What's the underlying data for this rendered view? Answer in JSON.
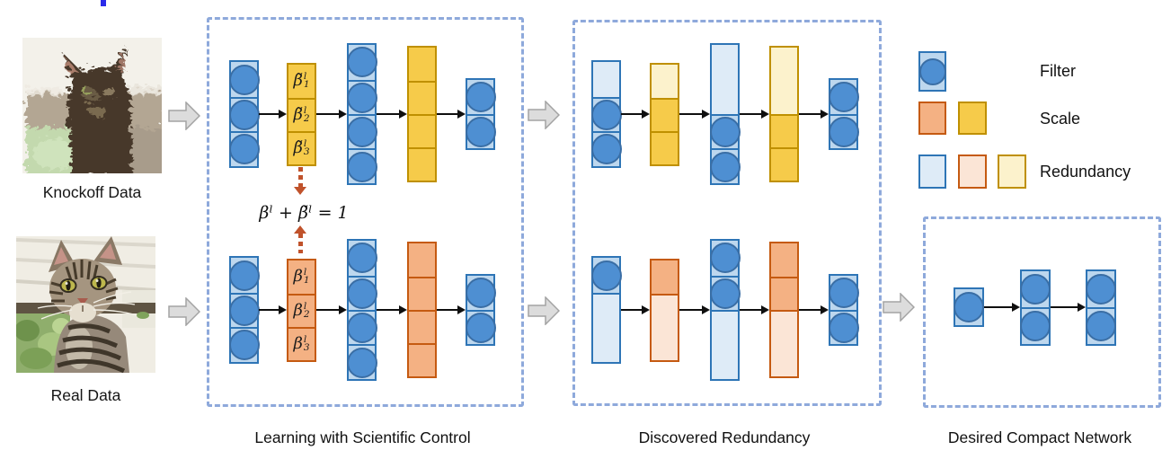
{
  "inputs": {
    "knockoff_label": "Knockoff Data",
    "real_label": "Real Data"
  },
  "panels": {
    "learning": {
      "caption": "Learning with Scientific Control",
      "equation": "βˡ + β̃ˡ = 1"
    },
    "discovered": {
      "caption": "Discovered Redundancy"
    },
    "compact": {
      "caption": "Desired Compact Network"
    }
  },
  "legend": {
    "items": [
      {
        "label": "Filter"
      },
      {
        "label": "Scale"
      },
      {
        "label": "Redundancy"
      }
    ]
  },
  "colors": {
    "filter_fill": "#4E8FD2",
    "filter_border": "#3A6EA5",
    "layer_fill": "#BDD7EE",
    "layer_border": "#2E75B6",
    "layer_redundant": "#DEEBF7",
    "scale_yellow_fill": "#F6CB4A",
    "scale_yellow_border": "#BF9000",
    "scale_yellow_redundant": "#FCF2CC",
    "scale_orange_fill": "#F4B183",
    "scale_orange_border": "#C55A11",
    "scale_orange_redundant": "#FBE5D6",
    "box_border": "#8EA9DB",
    "dotted_arrow": "#C0522B"
  },
  "diagram": {
    "learning_top": {
      "columns": [
        {
          "kind": "filters",
          "cells": [
            {
              "type": "filter"
            },
            {
              "type": "filter"
            },
            {
              "type": "filter"
            }
          ]
        },
        {
          "kind": "scale",
          "palette": "yellow",
          "cells": [
            {
              "type": "plain",
              "label": {
                "base": "β̃",
                "sup": "l",
                "sub": "1"
              }
            },
            {
              "type": "plain",
              "label": {
                "base": "β̃",
                "sup": "l",
                "sub": "2"
              }
            },
            {
              "type": "plain",
              "label": {
                "base": "β̃",
                "sup": "l",
                "sub": "3"
              }
            }
          ]
        },
        {
          "kind": "filters",
          "cells": [
            {
              "type": "filter"
            },
            {
              "type": "filter"
            },
            {
              "type": "filter"
            },
            {
              "type": "filter"
            }
          ]
        },
        {
          "kind": "scale",
          "palette": "yellow",
          "cells": [
            {
              "type": "plain"
            },
            {
              "type": "plain"
            },
            {
              "type": "plain"
            },
            {
              "type": "plain"
            }
          ]
        },
        {
          "kind": "filters",
          "cells": [
            {
              "type": "filter"
            },
            {
              "type": "filter"
            }
          ]
        }
      ]
    },
    "learning_bottom": {
      "columns": [
        {
          "kind": "filters",
          "cells": [
            {
              "type": "filter"
            },
            {
              "type": "filter"
            },
            {
              "type": "filter"
            }
          ]
        },
        {
          "kind": "scale",
          "palette": "orange",
          "cells": [
            {
              "type": "plain",
              "label": {
                "base": "β",
                "sup": "l",
                "sub": "1"
              }
            },
            {
              "type": "plain",
              "label": {
                "base": "β",
                "sup": "l",
                "sub": "2"
              }
            },
            {
              "type": "plain",
              "label": {
                "base": "β",
                "sup": "l",
                "sub": "3"
              }
            }
          ]
        },
        {
          "kind": "filters",
          "cells": [
            {
              "type": "filter"
            },
            {
              "type": "filter"
            },
            {
              "type": "filter"
            },
            {
              "type": "filter"
            }
          ]
        },
        {
          "kind": "scale",
          "palette": "orange",
          "cells": [
            {
              "type": "plain"
            },
            {
              "type": "plain"
            },
            {
              "type": "plain"
            },
            {
              "type": "plain"
            }
          ]
        },
        {
          "kind": "filters",
          "cells": [
            {
              "type": "filter"
            },
            {
              "type": "filter"
            }
          ]
        }
      ]
    },
    "discovered_top": {
      "columns": [
        {
          "kind": "filters",
          "cells": [
            {
              "type": "redundant"
            },
            {
              "type": "filter"
            },
            {
              "type": "filter"
            }
          ]
        },
        {
          "kind": "scale",
          "palette": "yellow",
          "cells": [
            {
              "type": "redundant"
            },
            {
              "type": "plain"
            },
            {
              "type": "plain"
            }
          ]
        },
        {
          "kind": "filters",
          "cells": [
            {
              "type": "redundant",
              "span": 2
            },
            {
              "type": "filter"
            },
            {
              "type": "filter"
            }
          ]
        },
        {
          "kind": "scale",
          "palette": "yellow",
          "cells": [
            {
              "type": "redundant",
              "span": 2
            },
            {
              "type": "plain"
            },
            {
              "type": "plain"
            }
          ]
        },
        {
          "kind": "filters",
          "cells": [
            {
              "type": "filter"
            },
            {
              "type": "filter"
            }
          ]
        }
      ]
    },
    "discovered_bottom": {
      "columns": [
        {
          "kind": "filters",
          "cells": [
            {
              "type": "filter"
            },
            {
              "type": "redundant",
              "span": 2
            }
          ]
        },
        {
          "kind": "scale",
          "palette": "orange",
          "cells": [
            {
              "type": "plain"
            },
            {
              "type": "redundant",
              "span": 2
            }
          ]
        },
        {
          "kind": "filters",
          "cells": [
            {
              "type": "filter"
            },
            {
              "type": "filter"
            },
            {
              "type": "redundant",
              "span": 2
            }
          ]
        },
        {
          "kind": "scale",
          "palette": "orange",
          "cells": [
            {
              "type": "plain"
            },
            {
              "type": "plain"
            },
            {
              "type": "redundant",
              "span": 2
            }
          ]
        },
        {
          "kind": "filters",
          "cells": [
            {
              "type": "filter"
            },
            {
              "type": "filter"
            }
          ]
        }
      ]
    },
    "compact": {
      "columns": [
        {
          "kind": "filters",
          "cells": [
            {
              "type": "filter"
            }
          ]
        },
        {
          "kind": "filters",
          "cells": [
            {
              "type": "filter"
            },
            {
              "type": "filter"
            }
          ]
        },
        {
          "kind": "filters",
          "cells": [
            {
              "type": "filter"
            },
            {
              "type": "filter"
            }
          ]
        }
      ]
    }
  }
}
